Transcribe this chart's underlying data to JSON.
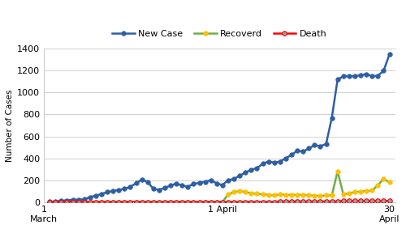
{
  "new_cases": [
    1,
    5,
    11,
    15,
    20,
    21,
    24,
    45,
    57,
    73,
    91,
    100,
    110,
    120,
    138,
    171,
    205,
    185,
    120,
    110,
    130,
    150,
    170,
    150,
    140,
    165,
    175,
    185,
    200,
    170,
    155,
    200,
    210,
    240,
    270,
    295,
    310,
    350,
    370,
    360,
    370,
    400,
    430,
    470,
    460,
    490,
    520,
    510,
    530,
    770,
    1120,
    1150,
    1150,
    1150,
    1160,
    1170,
    1150,
    1155,
    1200,
    1350
  ],
  "recovered": [
    0,
    0,
    0,
    0,
    0,
    0,
    0,
    0,
    0,
    0,
    0,
    0,
    0,
    0,
    0,
    0,
    0,
    0,
    0,
    0,
    0,
    0,
    0,
    0,
    0,
    0,
    0,
    0,
    0,
    0,
    0,
    70,
    90,
    100,
    90,
    80,
    75,
    70,
    65,
    60,
    70,
    65,
    65,
    65,
    65,
    60,
    58,
    55,
    60,
    60,
    280,
    70,
    80,
    90,
    95,
    100,
    105,
    155,
    210,
    180
  ],
  "deaths": [
    0,
    0,
    0,
    0,
    0,
    0,
    0,
    0,
    0,
    0,
    0,
    0,
    0,
    0,
    0,
    0,
    0,
    0,
    0,
    0,
    0,
    0,
    0,
    0,
    0,
    0,
    0,
    0,
    0,
    0,
    0,
    0,
    0,
    0,
    0,
    0,
    0,
    0,
    0,
    0,
    5,
    5,
    5,
    5,
    5,
    5,
    5,
    5,
    5,
    5,
    5,
    10,
    10,
    10,
    10,
    10,
    10,
    10,
    10,
    10
  ],
  "new_case_line_color": "#2e5fa3",
  "new_case_marker_color": "#2e5fa3",
  "recovered_line_color": "#70ad47",
  "recovered_marker_color": "#ffc000",
  "death_line_color": "#ff0000",
  "death_marker_color": "#a0a0a0",
  "death_marker_edge_color": "#ff0000",
  "ylabel": "Number of Cases",
  "ylim": [
    0,
    1400
  ],
  "yticks": [
    0,
    200,
    400,
    600,
    800,
    1000,
    1200,
    1400
  ],
  "x_start": 2,
  "march1_x": 1,
  "april1_x": 32,
  "april30_x": 61,
  "xlim": [
    1,
    62
  ],
  "xtick_positions": [
    1,
    32,
    61
  ],
  "xtick_labels": [
    "1\nMarch",
    "1 April",
    "30\nApril"
  ],
  "legend_new_case": "New Case",
  "legend_recovered": "Recoverd",
  "legend_death": "Death",
  "bg_color": "#ffffff",
  "grid_color": "#d0d0d0",
  "marker_size": 4,
  "linewidth": 1.8
}
